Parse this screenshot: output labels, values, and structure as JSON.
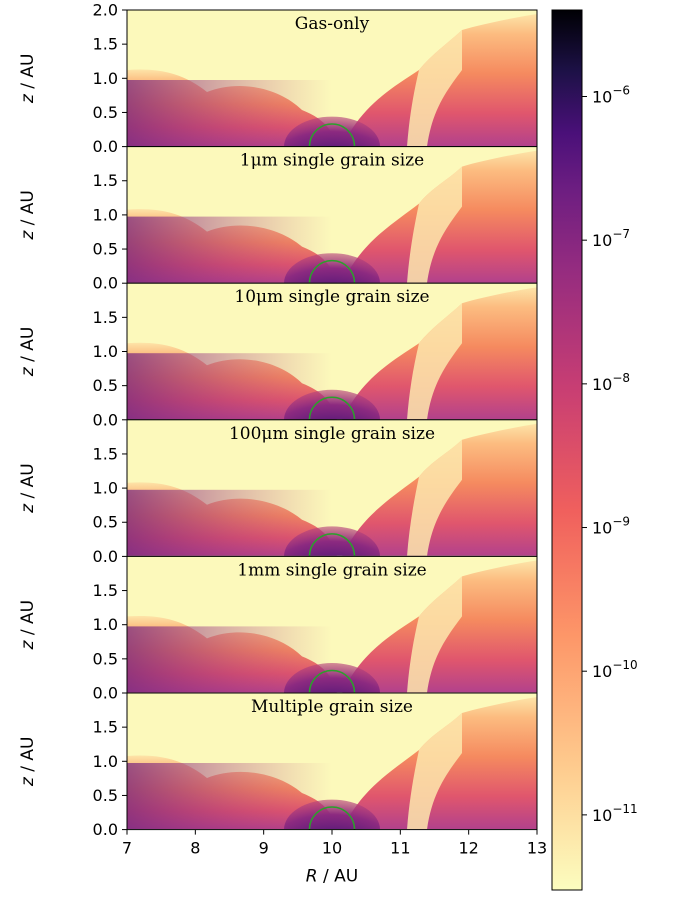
{
  "chart_data": {
    "type": "heatmap",
    "colormap": "magma_r",
    "xlabel": "R / AU",
    "ylabel": "z / AU",
    "xlim": [
      7,
      13
    ],
    "ylim": [
      0,
      2
    ],
    "xticks": [
      "7",
      "8",
      "9",
      "10",
      "11",
      "12",
      "13"
    ],
    "yticks": [
      "0.0",
      "0.5",
      "1.0",
      "1.5",
      "2.0"
    ],
    "planet": {
      "R": 10,
      "radius_au": 0.33,
      "color": "#2ca02c"
    },
    "panels": [
      {
        "title": "Gas-only",
        "show_top_tick": true
      },
      {
        "title": "1μm single grain size",
        "show_top_tick": false
      },
      {
        "title": "10μm single grain size",
        "show_top_tick": false
      },
      {
        "title": "100μm single grain size",
        "show_top_tick": false
      },
      {
        "title": "1mm single grain size",
        "show_top_tick": false
      },
      {
        "title": "Multiple grain size",
        "show_top_tick": false
      }
    ],
    "colorbar": {
      "scale": "log",
      "range": [
        3e-12,
        4e-06
      ],
      "ticks": [
        {
          "value": 1e-11,
          "base": "10",
          "exp": "−11"
        },
        {
          "value": 1e-10,
          "base": "10",
          "exp": "−10"
        },
        {
          "value": 1e-09,
          "base": "10",
          "exp": "−9"
        },
        {
          "value": 1e-08,
          "base": "10",
          "exp": "−8"
        },
        {
          "value": 1e-07,
          "base": "10",
          "exp": "−7"
        },
        {
          "value": 1e-06,
          "base": "10",
          "exp": "−6"
        }
      ]
    }
  }
}
